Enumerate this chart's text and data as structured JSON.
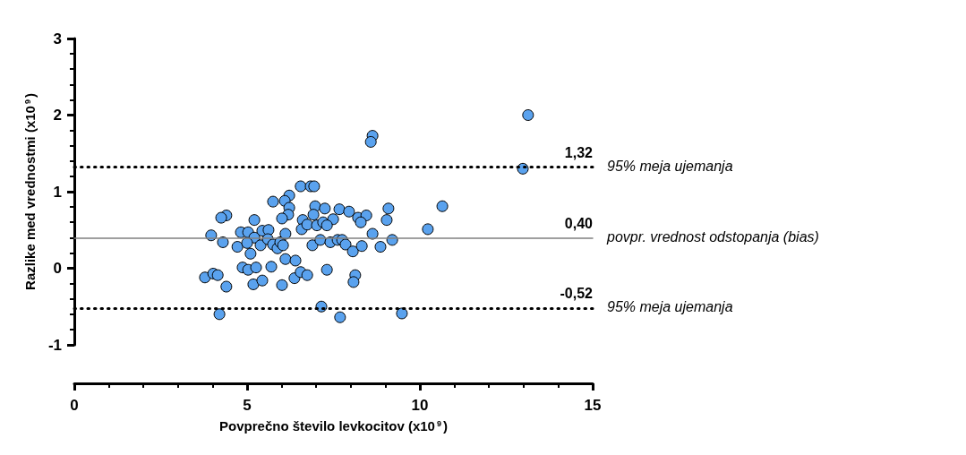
{
  "chart_data": {
    "type": "scatter",
    "xlabel": "Povprečno število levkocitov (x10$^{9}$)",
    "ylabel": "Razlike med vrednostmi (x10$^{9}$)",
    "xlim": [
      0,
      15
    ],
    "xticks": [
      0,
      5,
      10,
      15
    ],
    "ylim": [
      -1,
      3
    ],
    "yticks": [
      -1,
      0,
      1,
      2,
      3
    ],
    "grid": false,
    "marker": "circle",
    "series": [
      {
        "color": "#5aa2ee",
        "x": [
          13.13,
          12.98,
          8.63,
          8.58,
          10.65,
          10.23,
          6.55,
          6.84,
          6.94,
          5.75,
          6.22,
          6.09,
          6.22,
          6.19,
          6.01,
          4.4,
          4.25,
          5.21,
          6.97,
          7.25,
          6.92,
          7.67,
          7.95,
          8.21,
          8.45,
          8.29,
          9.09,
          9.04,
          6.61,
          6.58,
          6.74,
          7.02,
          7.2,
          7.49,
          7.31,
          3.96,
          4.3,
          4.72,
          4.82,
          5.03,
          5.21,
          5.0,
          5.39,
          5.44,
          5.62,
          5.6,
          5.75,
          5.88,
          5.96,
          6.04,
          6.11,
          5.1,
          6.89,
          7.12,
          7.41,
          7.62,
          7.75,
          7.85,
          8.06,
          8.32,
          8.63,
          8.86,
          9.2,
          6.11,
          6.4,
          4.87,
          5.03,
          5.26,
          5.7,
          7.31,
          3.78,
          4.02,
          4.15,
          4.4,
          5.18,
          5.44,
          6.01,
          6.37,
          6.55,
          6.74,
          8.13,
          8.08,
          7.15,
          4.2,
          7.69,
          9.48
        ],
        "values": [
          2.0,
          1.3,
          1.73,
          1.65,
          0.81,
          0.51,
          1.07,
          1.07,
          1.07,
          0.87,
          0.95,
          0.88,
          0.79,
          0.7,
          0.65,
          0.69,
          0.66,
          0.63,
          0.81,
          0.78,
          0.7,
          0.77,
          0.74,
          0.66,
          0.69,
          0.6,
          0.78,
          0.63,
          0.63,
          0.51,
          0.57,
          0.56,
          0.6,
          0.64,
          0.56,
          0.43,
          0.34,
          0.28,
          0.47,
          0.47,
          0.4,
          0.33,
          0.3,
          0.49,
          0.5,
          0.38,
          0.31,
          0.26,
          0.34,
          0.3,
          0.45,
          0.19,
          0.3,
          0.37,
          0.34,
          0.37,
          0.37,
          0.31,
          0.22,
          0.29,
          0.45,
          0.28,
          0.37,
          0.12,
          0.1,
          0.01,
          -0.02,
          0.01,
          0.02,
          -0.02,
          -0.12,
          -0.07,
          -0.09,
          -0.24,
          -0.21,
          -0.16,
          -0.22,
          -0.13,
          -0.05,
          -0.09,
          -0.09,
          -0.18,
          -0.5,
          -0.6,
          -0.64,
          -0.59
        ]
      }
    ],
    "ref_lines": [
      {
        "axis": "y",
        "value": 1.32,
        "label": "1,32",
        "line_style": "dotted",
        "color": "#000000"
      },
      {
        "axis": "y",
        "value": 0.4,
        "label": "0,40",
        "line_style": "solid",
        "color": "#808080"
      },
      {
        "axis": "y",
        "value": -0.52,
        "label": "-0,52",
        "line_style": "dotted",
        "color": "#000000"
      }
    ],
    "annotations": [
      "95% meja ujemanja",
      "povpr. vrednost odstopanja (bias)",
      "95% meja ujemanja"
    ]
  }
}
